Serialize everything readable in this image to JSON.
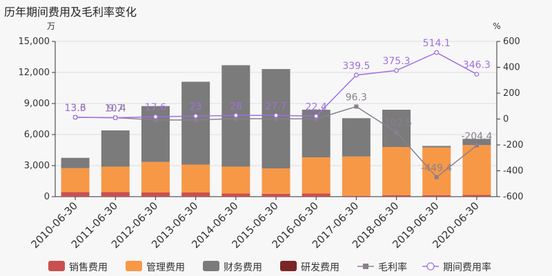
{
  "title": "历年期间费用及毛利率变化",
  "chart_data": {
    "type": "bar",
    "stacked": true,
    "categories": [
      "2010-06-30",
      "2011-06-30",
      "2012-06-30",
      "2013-06-30",
      "2014-06-30",
      "2015-06-30",
      "2016-06-30",
      "2017-06-30",
      "2018-06-30",
      "2019-06-30",
      "2020-06-30"
    ],
    "left_axis": {
      "unit": "万",
      "ylim": [
        0,
        15000
      ],
      "ticks": [
        "0",
        "3,000",
        "6,000",
        "9,000",
        "12,000",
        "15,000"
      ]
    },
    "right_axis": {
      "unit": "%",
      "ylim": [
        -600,
        600
      ],
      "ticks": [
        "-600",
        "-400",
        "-200",
        "0",
        "200",
        "400",
        "600"
      ]
    },
    "series": [
      {
        "name": "销售费用",
        "kind": "bar",
        "axis": "left",
        "color": "#c9504f",
        "values": [
          450,
          450,
          400,
          400,
          300,
          280,
          300,
          80,
          150,
          150,
          180
        ]
      },
      {
        "name": "管理费用",
        "kind": "bar",
        "axis": "left",
        "color": "#f79847",
        "values": [
          2300,
          2450,
          2950,
          2700,
          2600,
          2450,
          3500,
          3800,
          4650,
          4600,
          4800
        ]
      },
      {
        "name": "财务费用",
        "kind": "bar",
        "axis": "left",
        "color": "#7b7b7b",
        "values": [
          1000,
          3500,
          5400,
          8000,
          9800,
          9600,
          4600,
          3700,
          3600,
          150,
          600
        ]
      },
      {
        "name": "研发费用",
        "kind": "bar",
        "axis": "left",
        "color": "#7a2626",
        "values": [
          0,
          0,
          0,
          0,
          0,
          0,
          0,
          0,
          0,
          0,
          0
        ]
      },
      {
        "name": "毛利率",
        "kind": "line",
        "axis": "right",
        "color": "#8a7f8f",
        "marker": "square",
        "values": [
          13.6,
          10.4,
          -7,
          -7,
          3,
          2,
          1,
          96.3,
          -102.5,
          -449.4,
          -204.4
        ],
        "labels": [
          "13.6",
          "10.4",
          "",
          "",
          "",
          "",
          "",
          "96.3",
          "-102.5",
          "-449.4",
          "-204.4"
        ]
      },
      {
        "name": "期间费用率",
        "kind": "line",
        "axis": "right",
        "color": "#a070e0",
        "marker": "circle",
        "values": [
          13.3,
          9.7,
          17.6,
          23,
          28,
          27.7,
          22.4,
          339.5,
          375.3,
          514.1,
          346.3
        ],
        "labels": [
          "13.3",
          "9.7",
          "17.6",
          "23",
          "28",
          "27.7",
          "22.4",
          "339.5",
          "375.3",
          "514.1",
          "346.3"
        ]
      }
    ],
    "grid": true,
    "legend_position": "bottom"
  }
}
